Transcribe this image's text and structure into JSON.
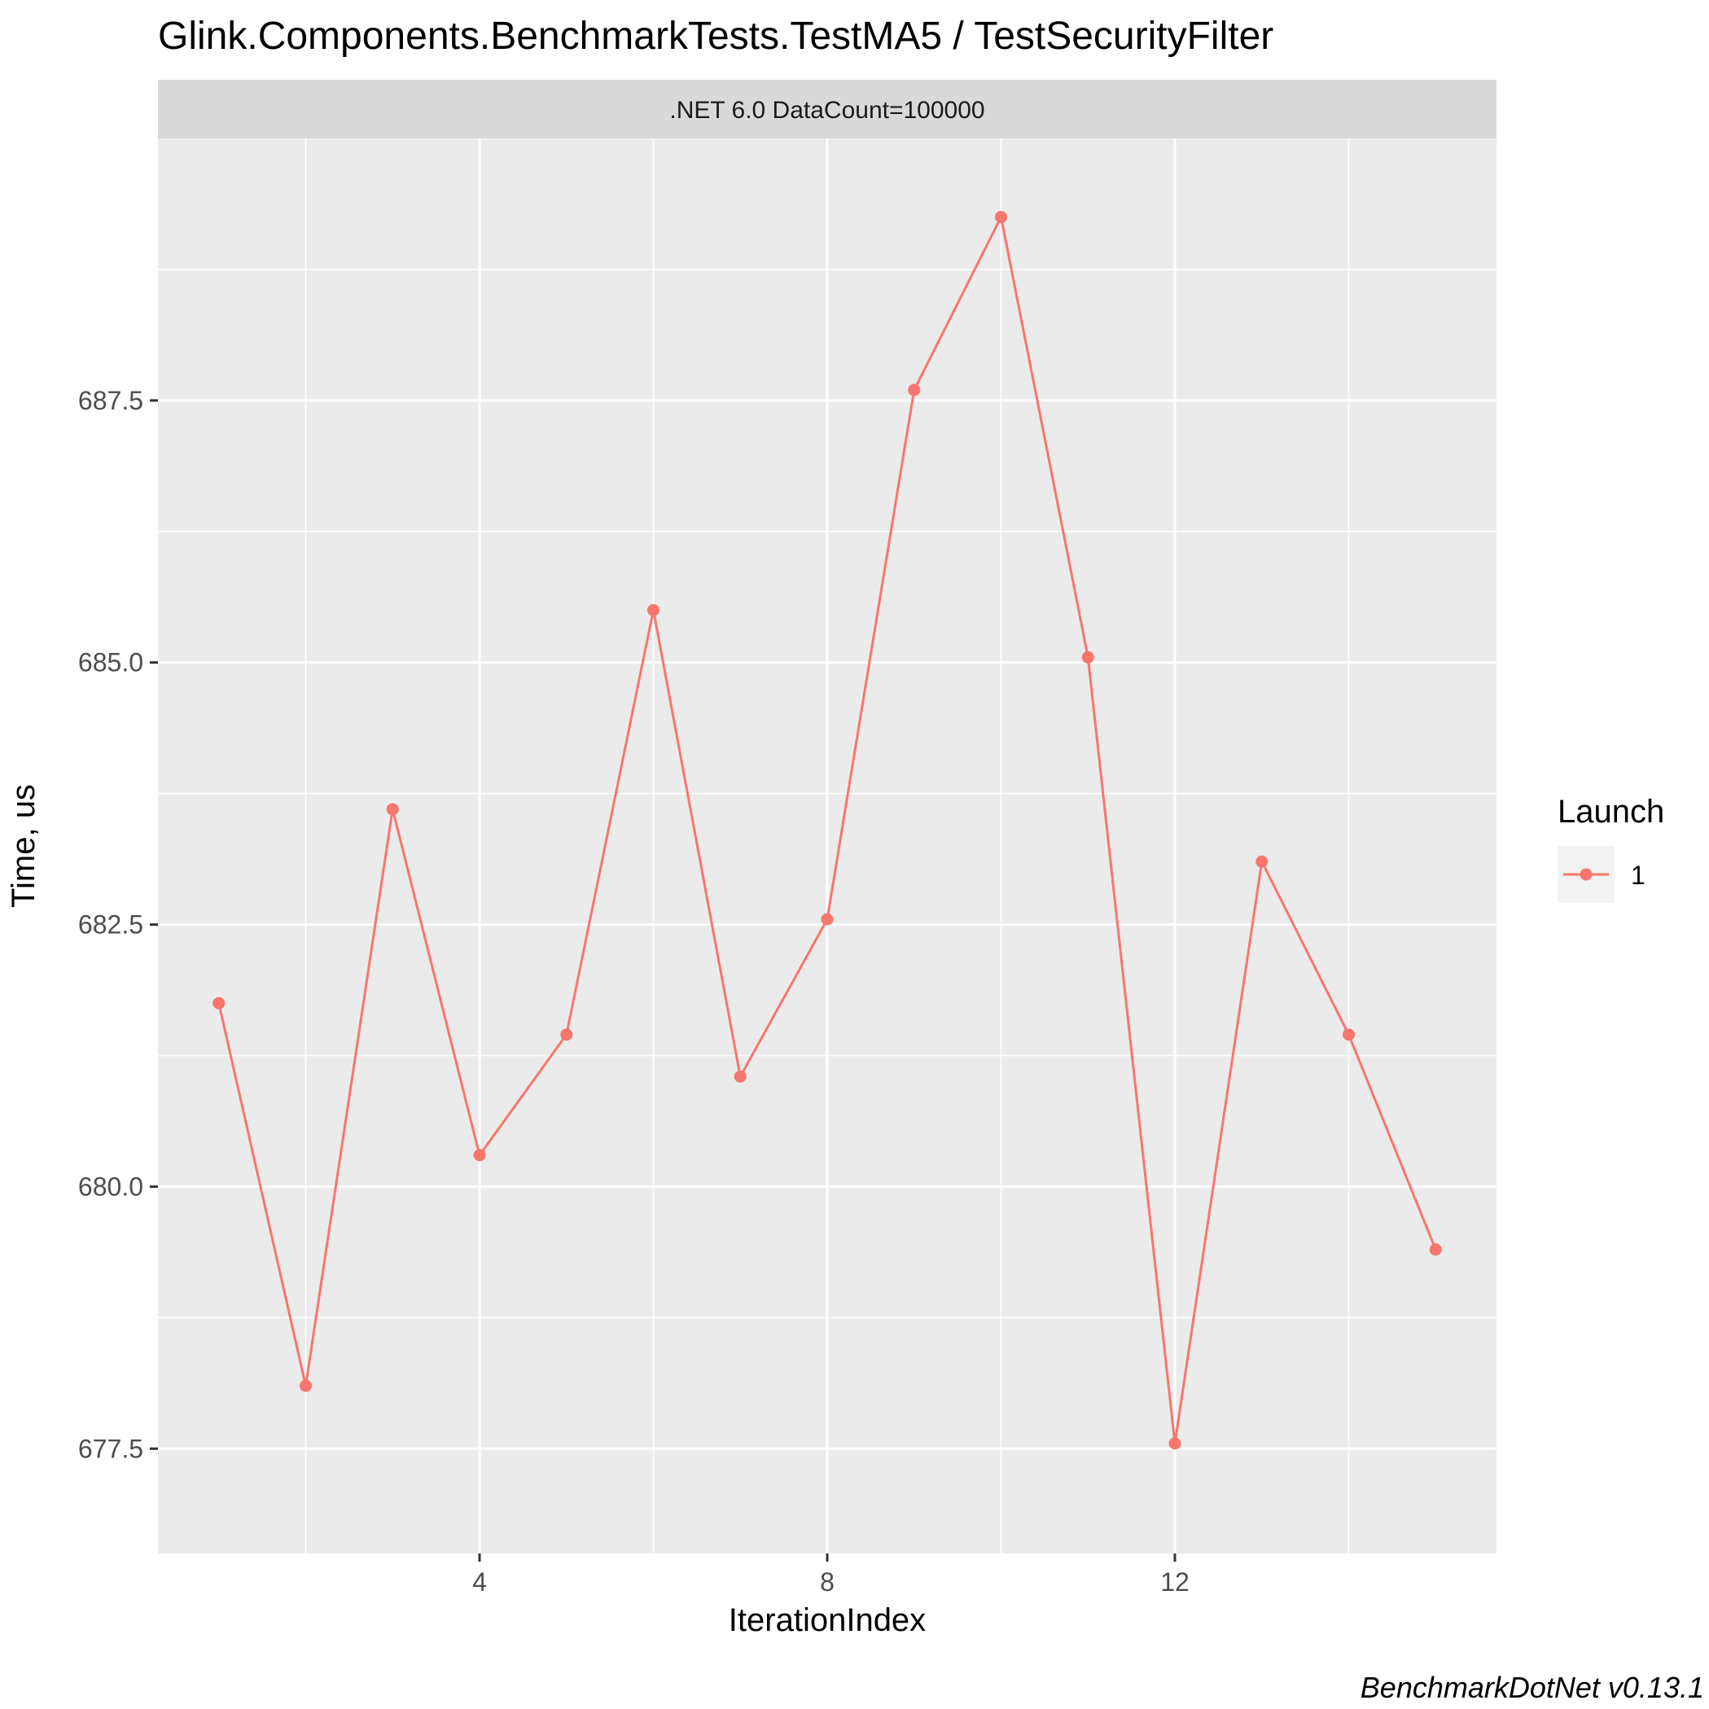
{
  "chart_data": {
    "type": "line",
    "title": "Glink.Components.BenchmarkTests.TestMA5 / TestSecurityFilter",
    "facet_label": ".NET 6.0 DataCount=100000",
    "xlabel": "IterationIndex",
    "ylabel": "Time, us",
    "xlim": [
      0.3,
      15.7
    ],
    "ylim": [
      676.5,
      690.0
    ],
    "x_ticks": [
      4,
      8,
      12
    ],
    "x_tick_labels": [
      "4",
      "8",
      "12"
    ],
    "y_ticks": [
      677.5,
      680.0,
      682.5,
      685.0,
      687.5
    ],
    "y_tick_labels": [
      "677.5",
      "680.0",
      "682.5",
      "685.0",
      "687.5"
    ],
    "x_minor_ticks": [
      2,
      6,
      10,
      14
    ],
    "y_minor_ticks": [
      678.75,
      681.25,
      683.75,
      686.25,
      688.75
    ],
    "grid": true,
    "legend": {
      "title": "Launch",
      "position": "right",
      "entries": [
        "1"
      ]
    },
    "series": [
      {
        "name": "1",
        "color": "#F8766D",
        "x": [
          1,
          2,
          3,
          4,
          5,
          6,
          7,
          8,
          9,
          10,
          11,
          12,
          13,
          14,
          15
        ],
        "y": [
          681.75,
          678.1,
          683.6,
          680.3,
          681.45,
          685.5,
          681.05,
          682.55,
          687.6,
          689.25,
          685.05,
          677.55,
          683.1,
          681.45,
          679.4
        ]
      }
    ],
    "caption": "BenchmarkDotNet v0.13.1"
  },
  "colors": {
    "panel_bg": "#EBEBEB",
    "strip_bg": "#D9D9D9",
    "grid_major": "#FFFFFF",
    "series": "#F8766D"
  }
}
